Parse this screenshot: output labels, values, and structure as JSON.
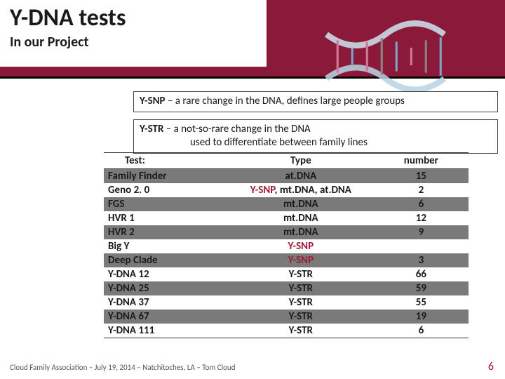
{
  "header": {
    "title": "Y-DNA tests",
    "subtitle": "In our Project",
    "band_color": "#8b1a3a"
  },
  "definitions": [
    {
      "term": "Y-SNP",
      "text": " – a rare change in the DNA, defines large people groups"
    },
    {
      "term": "Y-STR",
      "text": " – a not-so-rare change in the DNA",
      "text2": "used to differentiate between family lines"
    }
  ],
  "table": {
    "columns": [
      "Test:",
      "Type",
      "number"
    ],
    "rows": [
      {
        "test": "Family Finder",
        "type_parts": [
          [
            "norm",
            "at.DNA"
          ]
        ],
        "number": "15",
        "shade": "dark"
      },
      {
        "test": "Geno 2. 0",
        "type_parts": [
          [
            "snp",
            "Y-SNP"
          ],
          [
            "norm",
            ", mt.DNA, at.DNA"
          ]
        ],
        "number": "2",
        "shade": "light"
      },
      {
        "test": "FGS",
        "type_parts": [
          [
            "norm",
            "mt.DNA"
          ]
        ],
        "number": "6",
        "shade": "dark"
      },
      {
        "test": "HVR 1",
        "type_parts": [
          [
            "norm",
            "mt.DNA"
          ]
        ],
        "number": "12",
        "shade": "light"
      },
      {
        "test": "HVR 2",
        "type_parts": [
          [
            "norm",
            "mt.DNA"
          ]
        ],
        "number": "9",
        "shade": "dark"
      },
      {
        "test": "Big Y",
        "type_parts": [
          [
            "snp",
            "Y-SNP"
          ]
        ],
        "number": "",
        "shade": "light"
      },
      {
        "test": "Deep Clade",
        "type_parts": [
          [
            "snp",
            "Y-SNP"
          ]
        ],
        "number": "3",
        "shade": "dark"
      },
      {
        "test": "Y-DNA 12",
        "type_parts": [
          [
            "norm",
            "Y-STR"
          ]
        ],
        "number": "66",
        "shade": "light"
      },
      {
        "test": "Y-DNA 25",
        "type_parts": [
          [
            "norm",
            "Y-STR"
          ]
        ],
        "number": "59",
        "shade": "dark"
      },
      {
        "test": "Y-DNA 37",
        "type_parts": [
          [
            "norm",
            "Y-STR"
          ]
        ],
        "number": "55",
        "shade": "light"
      },
      {
        "test": "Y-DNA 67",
        "type_parts": [
          [
            "norm",
            "Y-STR"
          ]
        ],
        "number": "19",
        "shade": "dark"
      },
      {
        "test": "Y-DNA 111",
        "type_parts": [
          [
            "norm",
            "Y-STR"
          ]
        ],
        "number": "6",
        "shade": "light"
      }
    ],
    "header_bg": "#d2d2d2",
    "col_widths": [
      "34%",
      "40%",
      "26%"
    ]
  },
  "footer": {
    "text": "Cloud Family Association – July 19, 2014 – Natchitoches, LA – Tom Cloud",
    "page": "6",
    "page_color": "#a01838"
  }
}
